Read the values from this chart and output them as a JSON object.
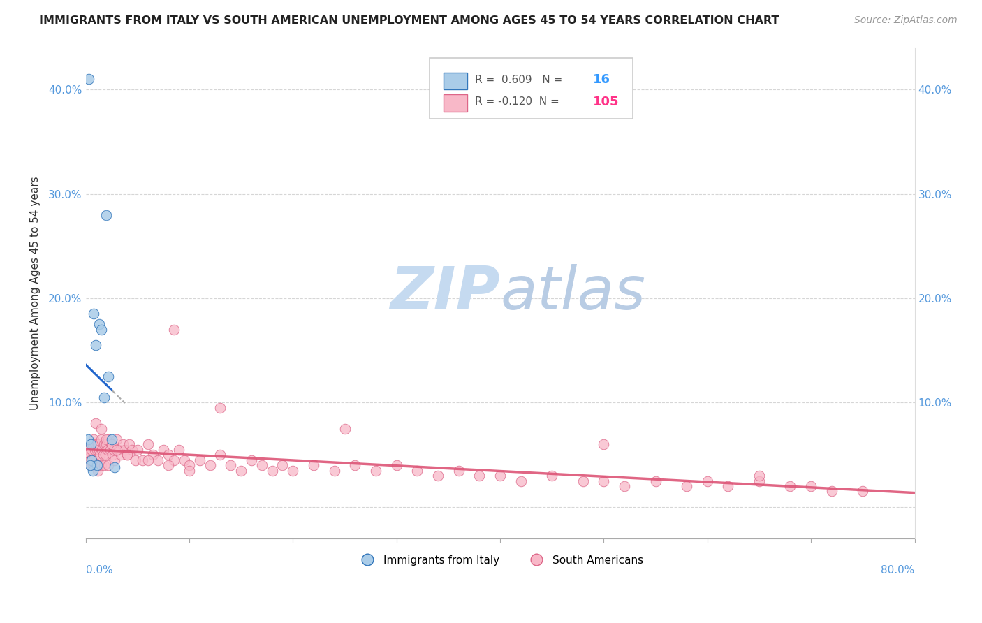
{
  "title": "IMMIGRANTS FROM ITALY VS SOUTH AMERICAN UNEMPLOYMENT AMONG AGES 45 TO 54 YEARS CORRELATION CHART",
  "source": "Source: ZipAtlas.com",
  "ylabel": "Unemployment Among Ages 45 to 54 years",
  "xlim": [
    0.0,
    0.8
  ],
  "ylim": [
    -0.03,
    0.44
  ],
  "italy_R": 0.609,
  "italy_N": 16,
  "sa_R": -0.12,
  "sa_N": 105,
  "italy_fill_color": "#aacce8",
  "italy_edge_color": "#3377bb",
  "italy_line_color": "#2266cc",
  "sa_fill_color": "#f8b8c8",
  "sa_edge_color": "#dd6688",
  "sa_line_color": "#dd5577",
  "watermark_color": "#dce9f5",
  "legend_R_color": "#555555",
  "legend_italy_N_color": "#3399ff",
  "legend_sa_N_color": "#ff3388",
  "italy_x": [
    0.002,
    0.003,
    0.005,
    0.006,
    0.007,
    0.008,
    0.01,
    0.011,
    0.013,
    0.015,
    0.018,
    0.02,
    0.022,
    0.025,
    0.028,
    0.004
  ],
  "italy_y": [
    0.065,
    0.41,
    0.06,
    0.045,
    0.035,
    0.185,
    0.155,
    0.04,
    0.175,
    0.17,
    0.105,
    0.28,
    0.125,
    0.065,
    0.038,
    0.04
  ],
  "sa_x": [
    0.002,
    0.003,
    0.004,
    0.005,
    0.005,
    0.006,
    0.006,
    0.007,
    0.007,
    0.008,
    0.008,
    0.009,
    0.009,
    0.01,
    0.01,
    0.011,
    0.011,
    0.012,
    0.012,
    0.013,
    0.014,
    0.015,
    0.015,
    0.016,
    0.017,
    0.018,
    0.018,
    0.019,
    0.02,
    0.021,
    0.022,
    0.022,
    0.024,
    0.025,
    0.026,
    0.027,
    0.028,
    0.03,
    0.032,
    0.034,
    0.036,
    0.038,
    0.04,
    0.042,
    0.045,
    0.048,
    0.05,
    0.055,
    0.06,
    0.065,
    0.07,
    0.075,
    0.08,
    0.085,
    0.09,
    0.095,
    0.1,
    0.11,
    0.12,
    0.13,
    0.14,
    0.15,
    0.16,
    0.17,
    0.18,
    0.19,
    0.2,
    0.22,
    0.24,
    0.26,
    0.28,
    0.3,
    0.32,
    0.34,
    0.36,
    0.38,
    0.4,
    0.42,
    0.45,
    0.48,
    0.5,
    0.52,
    0.55,
    0.58,
    0.6,
    0.62,
    0.65,
    0.68,
    0.7,
    0.72,
    0.75,
    0.085,
    0.13,
    0.25,
    0.5,
    0.65,
    0.01,
    0.015,
    0.02,
    0.025,
    0.03,
    0.04,
    0.06,
    0.08,
    0.1
  ],
  "sa_y": [
    0.055,
    0.05,
    0.045,
    0.06,
    0.04,
    0.055,
    0.045,
    0.06,
    0.04,
    0.065,
    0.045,
    0.055,
    0.04,
    0.06,
    0.04,
    0.055,
    0.04,
    0.06,
    0.035,
    0.055,
    0.05,
    0.065,
    0.04,
    0.055,
    0.05,
    0.06,
    0.04,
    0.05,
    0.06,
    0.055,
    0.065,
    0.04,
    0.055,
    0.06,
    0.05,
    0.055,
    0.045,
    0.065,
    0.055,
    0.05,
    0.06,
    0.055,
    0.05,
    0.06,
    0.055,
    0.045,
    0.055,
    0.045,
    0.06,
    0.05,
    0.045,
    0.055,
    0.05,
    0.045,
    0.055,
    0.045,
    0.04,
    0.045,
    0.04,
    0.05,
    0.04,
    0.035,
    0.045,
    0.04,
    0.035,
    0.04,
    0.035,
    0.04,
    0.035,
    0.04,
    0.035,
    0.04,
    0.035,
    0.03,
    0.035,
    0.03,
    0.03,
    0.025,
    0.03,
    0.025,
    0.025,
    0.02,
    0.025,
    0.02,
    0.025,
    0.02,
    0.025,
    0.02,
    0.02,
    0.015,
    0.015,
    0.17,
    0.095,
    0.075,
    0.06,
    0.03,
    0.08,
    0.075,
    0.065,
    0.06,
    0.055,
    0.05,
    0.045,
    0.04,
    0.035
  ]
}
